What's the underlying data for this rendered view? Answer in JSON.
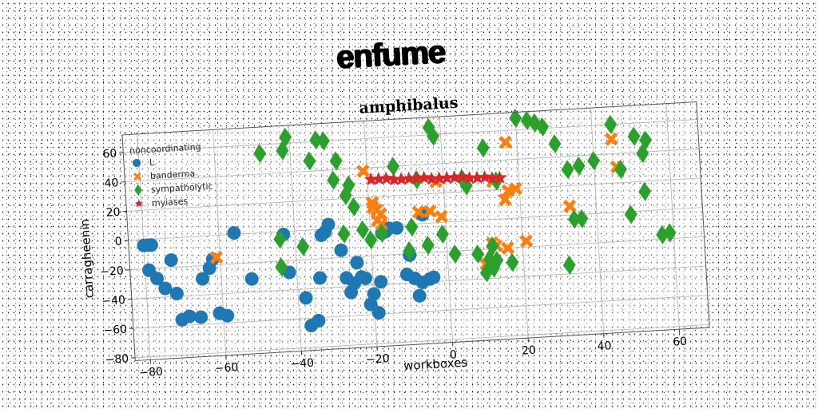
{
  "page_title": "enfume",
  "chart_data": {
    "type": "scatter",
    "title": "amphibalus",
    "xlabel": "workboxes",
    "ylabel": "carragheenin",
    "xlim": [
      -84,
      68
    ],
    "ylim": [
      -82,
      72
    ],
    "xticks": [
      -80,
      -60,
      -40,
      -20,
      0,
      20,
      40,
      60
    ],
    "yticks": [
      -80,
      -60,
      -40,
      -20,
      0,
      20,
      40,
      60
    ],
    "grid": true,
    "legend_title": "noncoordinating",
    "legend_placement": "top-left",
    "series": [
      {
        "name": "L",
        "marker": "circle",
        "color": "#1f77b4",
        "points": [
          [
            -80,
            -4
          ],
          [
            -79,
            -4
          ],
          [
            -78,
            -4
          ],
          [
            -79,
            -21
          ],
          [
            -77,
            -27
          ],
          [
            -75,
            -34
          ],
          [
            -73,
            -15
          ],
          [
            -72,
            -38
          ],
          [
            -71,
            -56
          ],
          [
            -69,
            -54
          ],
          [
            -66,
            -55
          ],
          [
            -65,
            -29
          ],
          [
            -63,
            -22
          ],
          [
            -62,
            -16
          ],
          [
            -61,
            -53
          ],
          [
            -59,
            -55
          ],
          [
            -56,
            1
          ],
          [
            -52,
            -31
          ],
          [
            -43,
            -2
          ],
          [
            -42,
            -28
          ],
          [
            -38,
            -46
          ],
          [
            -37,
            -65
          ],
          [
            -35,
            -62
          ],
          [
            -34,
            -33
          ],
          [
            -33,
            -4
          ],
          [
            -32,
            -2
          ],
          [
            -31,
            3
          ],
          [
            -28,
            -15
          ],
          [
            -27,
            -34
          ],
          [
            -26,
            -44
          ],
          [
            -25,
            -38
          ],
          [
            -24,
            -24
          ],
          [
            -23,
            -34
          ],
          [
            -22,
            -35
          ],
          [
            -21,
            -53
          ],
          [
            -20,
            -46
          ],
          [
            -19,
            -59
          ],
          [
            -18,
            -38
          ],
          [
            -17,
            -5
          ],
          [
            -16,
            -4
          ],
          [
            -15,
            -2
          ],
          [
            -13,
            -2
          ],
          [
            -11,
            -34
          ],
          [
            -9,
            -37
          ],
          [
            -8,
            -49
          ],
          [
            -7,
            -40
          ],
          [
            -5,
            -38
          ],
          [
            -4,
            -37
          ],
          [
            -6,
            6
          ],
          [
            -10,
            -21
          ]
        ]
      },
      {
        "name": "banderma",
        "marker": "x",
        "color": "#ff7f0e",
        "points": [
          [
            -61,
            -15
          ],
          [
            -21,
            38
          ],
          [
            -19,
            16
          ],
          [
            -19,
            13
          ],
          [
            -18,
            11
          ],
          [
            -17,
            8
          ],
          [
            -18,
            4
          ],
          [
            -17,
            1
          ],
          [
            -7,
            8
          ],
          [
            -4,
            8
          ],
          [
            -1,
            4
          ],
          [
            10,
            -30
          ],
          [
            12,
            -16
          ],
          [
            13,
            -18
          ],
          [
            16,
            -20
          ],
          [
            16,
            13
          ],
          [
            17,
            19
          ],
          [
            19,
            20
          ],
          [
            21,
            -16
          ],
          [
            17,
            52
          ],
          [
            33,
            6
          ],
          [
            45,
            50
          ],
          [
            46,
            31
          ],
          [
            13,
            26
          ],
          [
            -2,
            28
          ]
        ]
      },
      {
        "name": "sympatholytic",
        "marker": "diamond",
        "color": "#2ca02c",
        "points": [
          [
            -48,
            54
          ],
          [
            -44,
            -5
          ],
          [
            -44,
            -24
          ],
          [
            -42,
            55
          ],
          [
            -41,
            64
          ],
          [
            -38,
            -11
          ],
          [
            -35,
            47
          ],
          [
            -33,
            61
          ],
          [
            -31,
            60
          ],
          [
            -29,
            33
          ],
          [
            -28,
            46
          ],
          [
            -27,
            -4
          ],
          [
            -26,
            22
          ],
          [
            -25,
            29
          ],
          [
            -24,
            14
          ],
          [
            -22,
            -2
          ],
          [
            -20,
            -9
          ],
          [
            -17,
            -5
          ],
          [
            -13,
            40
          ],
          [
            -10,
            -18
          ],
          [
            -9,
            -2
          ],
          [
            -7,
            30
          ],
          [
            -5,
            -15
          ],
          [
            -3,
            65
          ],
          [
            -2,
            59
          ],
          [
            -1,
            -8
          ],
          [
            2,
            -22
          ],
          [
            5,
            29
          ],
          [
            6,
            24
          ],
          [
            8,
            -23
          ],
          [
            10,
            -36
          ],
          [
            11,
            -27
          ],
          [
            12,
            -33
          ],
          [
            12,
            -18
          ],
          [
            13,
            -28
          ],
          [
            11,
            49
          ],
          [
            14,
            26
          ],
          [
            17,
            -30
          ],
          [
            20,
            68
          ],
          [
            23,
            66
          ],
          [
            25,
            64
          ],
          [
            27,
            61
          ],
          [
            30,
            49
          ],
          [
            33,
            31
          ],
          [
            32,
            -34
          ],
          [
            34,
            -3
          ],
          [
            36,
            33
          ],
          [
            36,
            -3
          ],
          [
            40,
            36
          ],
          [
            45,
            60
          ],
          [
            47,
            29
          ],
          [
            49,
            -2
          ],
          [
            51,
            51
          ],
          [
            53,
            39
          ],
          [
            53,
            13
          ],
          [
            54,
            48
          ],
          [
            57,
            -17
          ],
          [
            59,
            -16
          ]
        ]
      },
      {
        "name": "myiases",
        "marker": "star",
        "color": "#d62728",
        "points": [
          [
            -19,
            32
          ],
          [
            -17,
            32
          ],
          [
            -15,
            32
          ],
          [
            -13,
            31
          ],
          [
            -11,
            31
          ],
          [
            -9,
            31
          ],
          [
            -7,
            31
          ],
          [
            -5,
            31
          ],
          [
            -3,
            30
          ],
          [
            -1,
            30
          ],
          [
            1,
            30
          ],
          [
            3,
            30
          ],
          [
            5,
            30
          ],
          [
            7,
            29
          ],
          [
            9,
            29
          ],
          [
            11,
            29
          ],
          [
            13,
            28
          ],
          [
            15,
            28
          ]
        ]
      }
    ]
  }
}
